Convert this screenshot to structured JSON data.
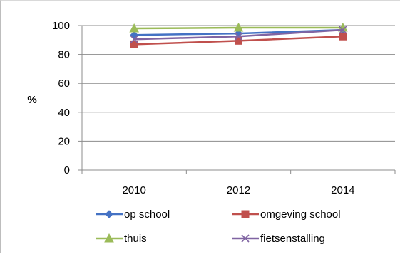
{
  "chart_data": {
    "type": "line",
    "x": [
      "2010",
      "2012",
      "2014"
    ],
    "ylabel": "%",
    "xlabel": "",
    "ylim": [
      0,
      100
    ],
    "yticks": [
      0,
      20,
      40,
      60,
      80,
      100
    ],
    "grid": true,
    "legend_position": "bottom",
    "series": [
      {
        "name": "op school",
        "values": [
          93.5,
          94.5,
          97
        ],
        "color": "#4472C4",
        "marker": "diamond"
      },
      {
        "name": "omgeving school",
        "values": [
          87,
          89.5,
          92.5
        ],
        "color": "#C0504D",
        "marker": "square"
      },
      {
        "name": "thuis",
        "values": [
          98,
          98.5,
          98.5
        ],
        "color": "#9BBB59",
        "marker": "triangle"
      },
      {
        "name": "fietsenstalling",
        "values": [
          90.5,
          92.5,
          97
        ],
        "color": "#8064A2",
        "marker": "x"
      }
    ]
  }
}
